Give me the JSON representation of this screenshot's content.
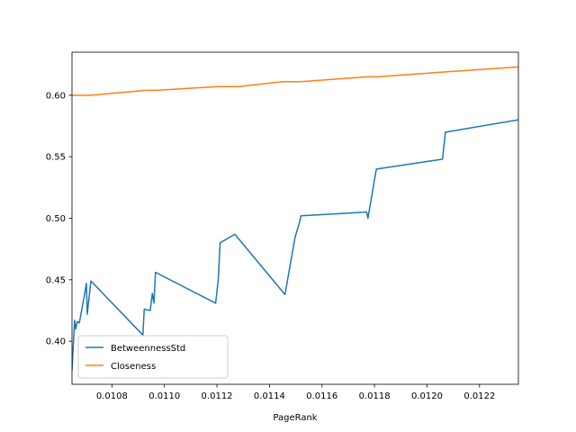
{
  "chart_data": {
    "type": "line",
    "title": "",
    "xlabel": "PageRank",
    "ylabel": "",
    "xlim": [
      0.010648,
      0.012348
    ],
    "ylim": [
      0.365,
      0.635
    ],
    "grid": false,
    "legend_position": "lower-left",
    "x_ticks": [
      0.0108,
      0.011,
      0.0112,
      0.0114,
      0.0116,
      0.0118,
      0.012,
      0.0122
    ],
    "x_tick_labels": [
      "0.0108",
      "0.0110",
      "0.0112",
      "0.0114",
      "0.0116",
      "0.0118",
      "0.0120",
      "0.0122"
    ],
    "y_ticks": [
      0.4,
      0.45,
      0.5,
      0.55,
      0.6
    ],
    "y_tick_labels": [
      "0.40",
      "0.45",
      "0.50",
      "0.55",
      "0.60"
    ],
    "series": [
      {
        "name": "BetweennessStd",
        "color": "#1f77b4",
        "x": [
          0.010648,
          0.010658,
          0.010662,
          0.010668,
          0.010676,
          0.010694,
          0.010703,
          0.010706,
          0.01072,
          0.010918,
          0.010923,
          0.010946,
          0.010954,
          0.01096,
          0.010966,
          0.011195,
          0.011205,
          0.011212,
          0.011268,
          0.011459,
          0.011498,
          0.011515,
          0.01152,
          0.01177,
          0.011775,
          0.011807,
          0.012059,
          0.01207,
          0.012348
        ],
        "y": [
          0.377,
          0.417,
          0.41,
          0.416,
          0.415,
          0.436,
          0.447,
          0.422,
          0.449,
          0.405,
          0.426,
          0.425,
          0.439,
          0.431,
          0.456,
          0.431,
          0.45,
          0.48,
          0.487,
          0.438,
          0.485,
          0.497,
          0.502,
          0.505,
          0.5,
          0.54,
          0.548,
          0.57,
          0.58
        ]
      },
      {
        "name": "Closeness",
        "color": "#ff7f0e",
        "x": [
          0.010648,
          0.01072,
          0.01093,
          0.01097,
          0.0112,
          0.01128,
          0.01145,
          0.01152,
          0.01177,
          0.01181,
          0.01207,
          0.012348
        ],
        "y": [
          0.6,
          0.6,
          0.604,
          0.604,
          0.607,
          0.607,
          0.611,
          0.611,
          0.615,
          0.615,
          0.619,
          0.623
        ]
      }
    ]
  }
}
